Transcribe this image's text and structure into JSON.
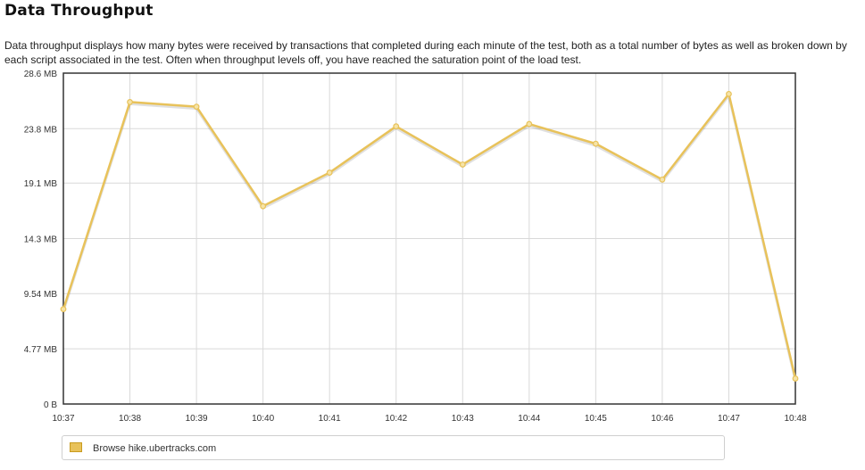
{
  "header": {
    "title": "Data Throughput",
    "description": "Data throughput displays how many bytes were received by transactions that completed during each minute of the test, both as a total number of bytes as well as broken down by each script associated in the test. Often when throughput levels off, you have reached the saturation point of the load test."
  },
  "chart_data": {
    "type": "line",
    "x": [
      "10:37",
      "10:38",
      "10:39",
      "10:40",
      "10:41",
      "10:42",
      "10:43",
      "10:44",
      "10:45",
      "10:46",
      "10:47",
      "10:48"
    ],
    "y_ticks": [
      {
        "value": 0,
        "label": "0 B"
      },
      {
        "value": 4.77,
        "label": "4.77 MB"
      },
      {
        "value": 9.54,
        "label": "9.54 MB"
      },
      {
        "value": 14.3,
        "label": "14.3 MB"
      },
      {
        "value": 19.1,
        "label": "19.1 MB"
      },
      {
        "value": 23.8,
        "label": "23.8 MB"
      },
      {
        "value": 28.6,
        "label": "28.6 MB"
      }
    ],
    "ylim": [
      0,
      28.6
    ],
    "y_unit": "MB",
    "grid": true,
    "legend_position": "bottom",
    "series": [
      {
        "name": "Browse hike.ubertracks.com",
        "color": "#e8c25a",
        "values": [
          8.2,
          26.1,
          25.7,
          17.1,
          20.0,
          24.0,
          20.7,
          24.2,
          22.5,
          19.4,
          26.8,
          2.2
        ]
      }
    ]
  }
}
